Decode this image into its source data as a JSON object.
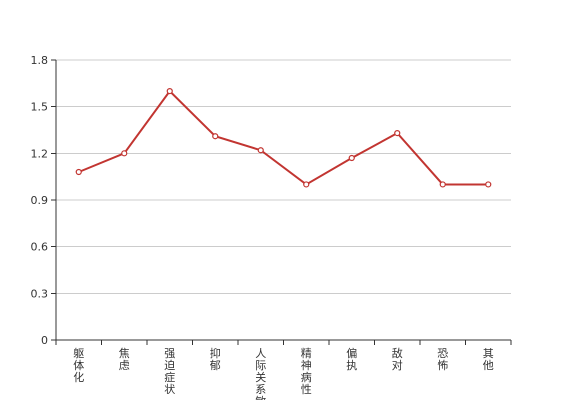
{
  "chart_data": {
    "type": "line",
    "categories": [
      "躯体化",
      "焦虑",
      "强迫症状",
      "抑郁",
      "人际关系敏感",
      "精神病性",
      "偏执",
      "敌对",
      "恐怖",
      "其他"
    ],
    "series": [
      {
        "values": [
          1.08,
          1.2,
          1.6,
          1.31,
          1.22,
          1.0,
          1.17,
          1.33,
          1.0,
          1.0
        ]
      }
    ],
    "ylim": [
      0,
      1.8
    ],
    "yticks": [
      0,
      0.3,
      0.6,
      0.9,
      1.2,
      1.5,
      1.8
    ],
    "ytick_labels": [
      "0",
      "0.3",
      "0.6",
      "0.9",
      "1.2",
      "1.5",
      "1.8"
    ],
    "grid": true,
    "colors": {
      "line": "#c23531",
      "marker_fill": "#ffffff",
      "grid": "#cccccc",
      "axis": "#333333"
    }
  }
}
